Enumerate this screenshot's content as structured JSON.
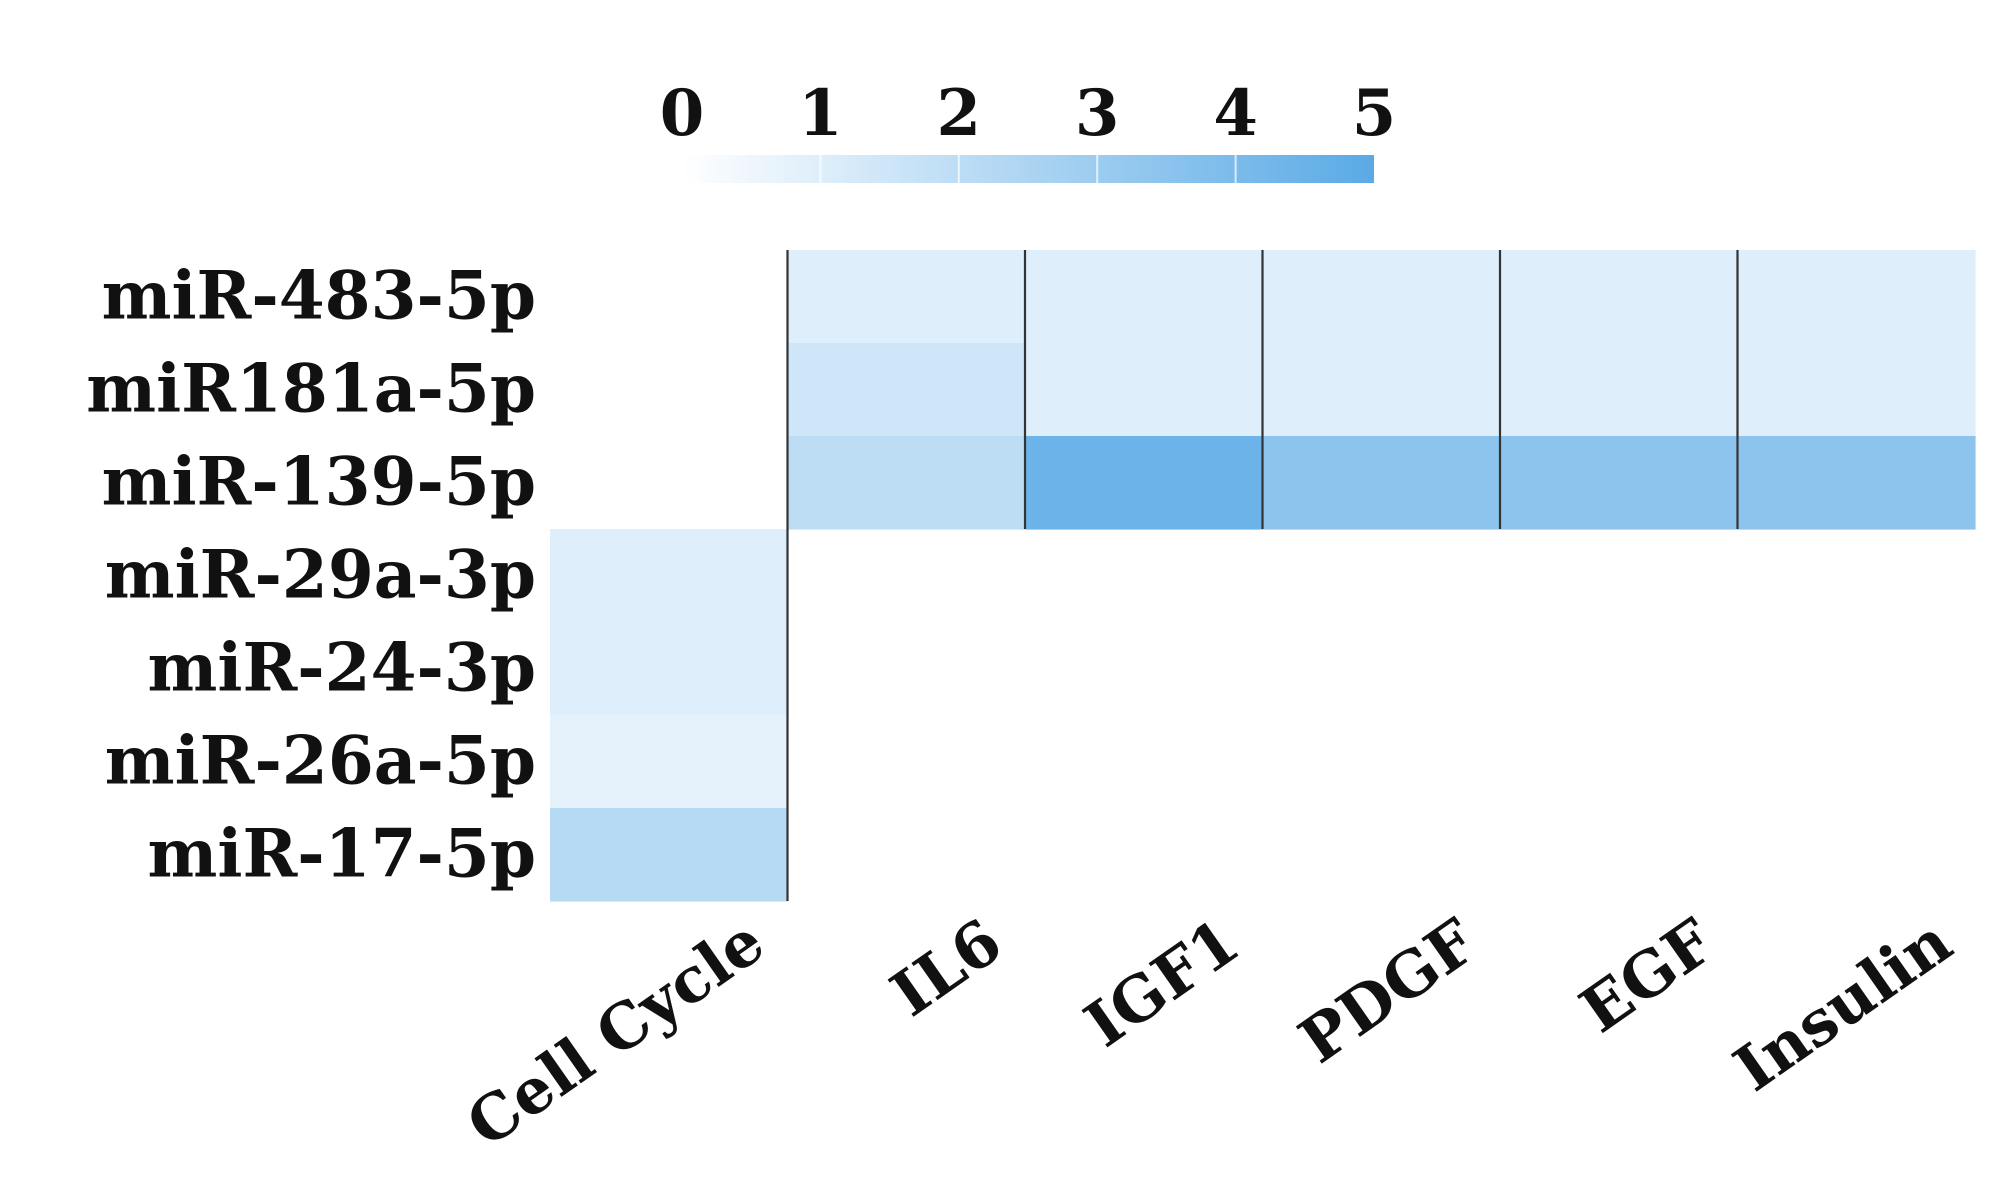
{
  "chart_data": {
    "type": "heatmap",
    "rows": [
      "miR-483-5p",
      "miR181a-5p",
      "miR-139-5p",
      "miR-29a-3p",
      "miR-24-3p",
      "miR-26a-5p",
      "miR-17-5p"
    ],
    "columns": [
      "Cell Cycle",
      "IL6",
      "IGF1",
      "PDGF",
      "EGF",
      "Insulin"
    ],
    "values": [
      [
        null,
        1.0,
        1.0,
        1.0,
        1.0,
        1.0
      ],
      [
        null,
        1.5,
        1.0,
        1.0,
        1.0,
        1.0
      ],
      [
        null,
        2.0,
        4.5,
        3.5,
        3.5,
        3.5
      ],
      [
        1.0,
        null,
        null,
        null,
        null,
        null
      ],
      [
        1.0,
        null,
        null,
        null,
        null,
        null
      ],
      [
        0.8,
        null,
        null,
        null,
        null,
        null
      ],
      [
        2.2,
        null,
        null,
        null,
        null,
        null
      ]
    ],
    "colorscale": {
      "ticks": [
        "0",
        "1",
        "2",
        "3",
        "4",
        "5"
      ],
      "min": 0,
      "max": 5,
      "min_color": "#ffffff",
      "max_color": "#5aaae6"
    },
    "grid": false
  }
}
